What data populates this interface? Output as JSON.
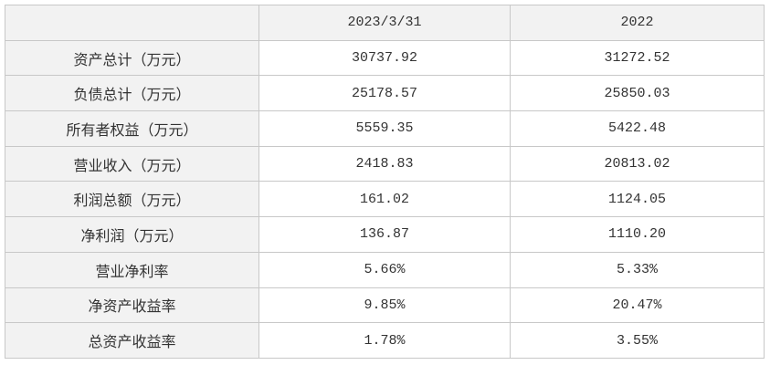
{
  "table": {
    "header": [
      "2023/3/31",
      "2022"
    ],
    "rows": [
      [
        "资产总计（万元）",
        "30737.92",
        "31272.52"
      ],
      [
        "负债总计（万元）",
        "25178.57",
        "25850.03"
      ],
      [
        "所有者权益（万元）",
        "5559.35",
        "5422.48"
      ],
      [
        "营业收入（万元）",
        "2418.83",
        "20813.02"
      ],
      [
        "利润总额（万元）",
        "161.02",
        "1124.05"
      ],
      [
        "净利润（万元）",
        "136.87",
        "1110.20"
      ],
      [
        "营业净利率",
        "5.66%",
        "5.33%"
      ],
      [
        "净资产收益率",
        "9.85%",
        "20.47%"
      ],
      [
        "总资产收益率",
        "1.78%",
        "3.55%"
      ]
    ]
  }
}
